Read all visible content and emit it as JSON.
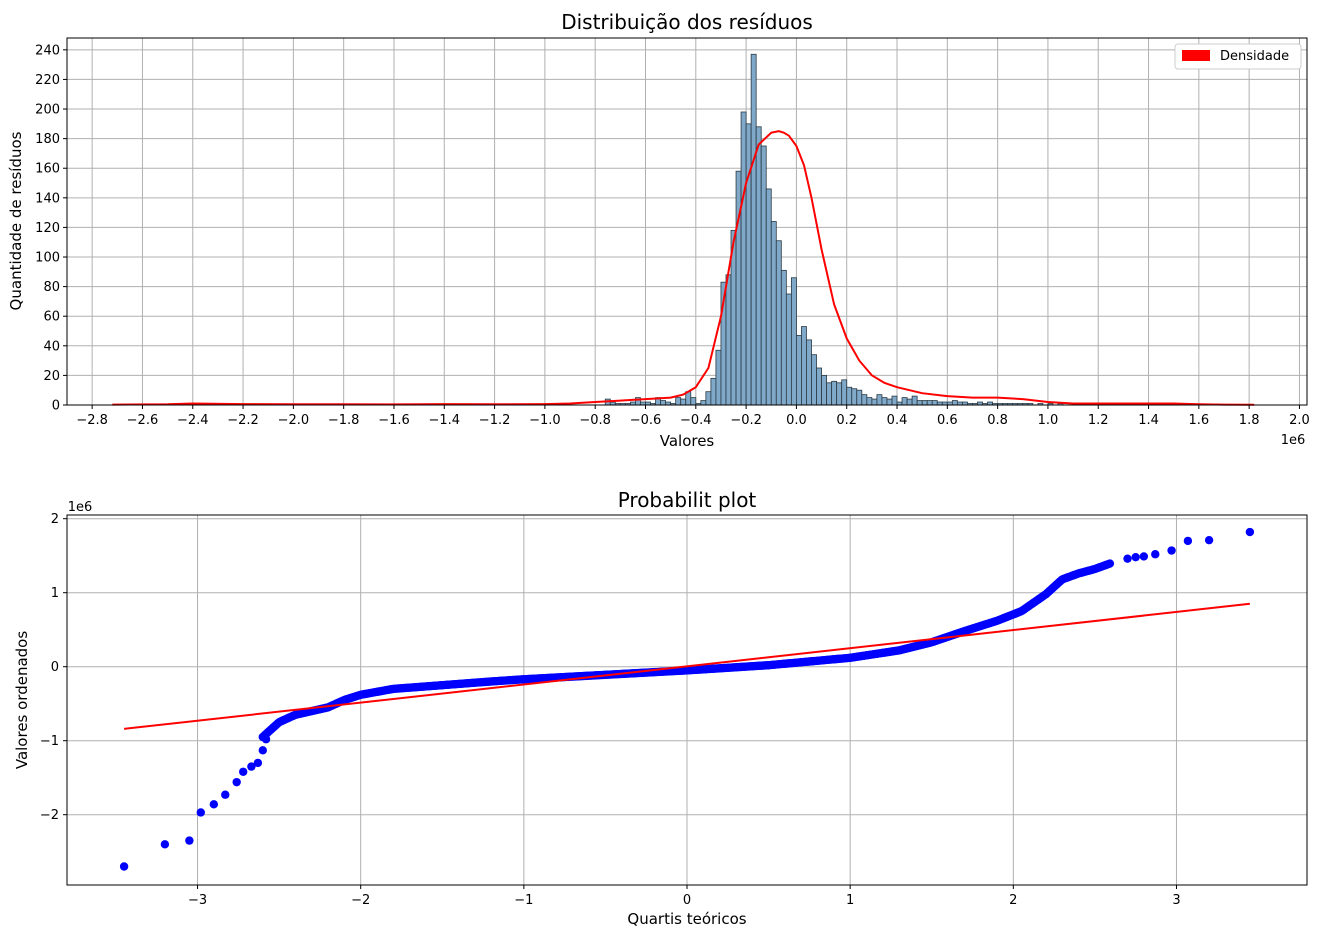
{
  "chart_data": [
    {
      "type": "bar",
      "title": "Distribuição dos resíduos",
      "xlabel": "Valores",
      "ylabel": "Quantidade de resíduos",
      "x_offset_text": "1e6",
      "xlim": [
        -2.9,
        2.03
      ],
      "ylim": [
        0,
        248
      ],
      "xticks": [
        -2.8,
        -2.6,
        -2.4,
        -2.2,
        -2.0,
        -1.8,
        -1.6,
        -1.4,
        -1.2,
        -1.0,
        -0.8,
        -0.6,
        -0.4,
        -0.2,
        0.0,
        0.2,
        0.4,
        0.6,
        0.8,
        1.0,
        1.2,
        1.4,
        1.6,
        1.8,
        2.0
      ],
      "xtick_labels": [
        "−2.8",
        "−2.6",
        "−2.4",
        "−2.2",
        "−2.0",
        "−1.8",
        "−1.6",
        "−1.4",
        "−1.2",
        "−1.0",
        "−0.8",
        "−0.6",
        "−0.4",
        "−0.2",
        "0.0",
        "0.2",
        "0.4",
        "0.6",
        "0.8",
        "1.0",
        "1.2",
        "1.4",
        "1.6",
        "1.8",
        "2.0"
      ],
      "yticks": [
        0,
        20,
        40,
        60,
        80,
        100,
        120,
        140,
        160,
        180,
        200,
        220,
        240
      ],
      "grid": true,
      "legend": {
        "position": "top-right",
        "entries": [
          "Densidade"
        ]
      },
      "bar_color": "#7fa8c9",
      "bar_edge": "#2b3a44",
      "kde_color": "#ff0000",
      "bin_width": 0.02,
      "bin_starts": [
        -0.92,
        -0.76,
        -0.74,
        -0.72,
        -0.7,
        -0.68,
        -0.66,
        -0.64,
        -0.62,
        -0.6,
        -0.58,
        -0.56,
        -0.54,
        -0.52,
        -0.5,
        -0.48,
        -0.46,
        -0.44,
        -0.42,
        -0.4,
        -0.38,
        -0.36,
        -0.34,
        -0.32,
        -0.3,
        -0.28,
        -0.26,
        -0.24,
        -0.22,
        -0.2,
        -0.18,
        -0.16,
        -0.14,
        -0.12,
        -0.1,
        -0.08,
        -0.06,
        -0.04,
        -0.02,
        0.0,
        0.02,
        0.04,
        0.06,
        0.08,
        0.1,
        0.12,
        0.14,
        0.16,
        0.18,
        0.2,
        0.22,
        0.24,
        0.26,
        0.28,
        0.3,
        0.32,
        0.34,
        0.36,
        0.38,
        0.4,
        0.42,
        0.44,
        0.46,
        0.48,
        0.5,
        0.52,
        0.54,
        0.56,
        0.58,
        0.6,
        0.62,
        0.64,
        0.66,
        0.68,
        0.7,
        0.72,
        0.74,
        0.76,
        0.78,
        0.8,
        0.82,
        0.84,
        0.86,
        0.88,
        0.9,
        0.92,
        0.96,
        1.0,
        1.04,
        1.1,
        1.16,
        1.2,
        1.26,
        1.3,
        1.36
      ],
      "counts": [
        1,
        4,
        2,
        1,
        1,
        1,
        2,
        5,
        2,
        2,
        1,
        5,
        3,
        2,
        1,
        5,
        4,
        9,
        5,
        1,
        3,
        9,
        18,
        37,
        83,
        88,
        118,
        158,
        198,
        190,
        237,
        188,
        175,
        146,
        124,
        111,
        91,
        75,
        86,
        47,
        53,
        44,
        34,
        25,
        20,
        15,
        16,
        15,
        17,
        12,
        11,
        10,
        7,
        5,
        4,
        7,
        5,
        4,
        6,
        2,
        5,
        4,
        6,
        3,
        3,
        3,
        3,
        2,
        2,
        2,
        3,
        2,
        2,
        1,
        1,
        2,
        1,
        2,
        1,
        1,
        1,
        1,
        1,
        1,
        1,
        1,
        1,
        1,
        1,
        1,
        1,
        1,
        1,
        1,
        1
      ],
      "kde_x": [
        -2.72,
        -2.5,
        -2.4,
        -2.2,
        -2.0,
        -1.8,
        -1.6,
        -1.4,
        -1.2,
        -1.0,
        -0.9,
        -0.8,
        -0.7,
        -0.6,
        -0.5,
        -0.45,
        -0.4,
        -0.35,
        -0.3,
        -0.25,
        -0.2,
        -0.15,
        -0.1,
        -0.07,
        -0.05,
        -0.03,
        0.0,
        0.03,
        0.06,
        0.1,
        0.15,
        0.2,
        0.25,
        0.3,
        0.35,
        0.4,
        0.5,
        0.6,
        0.7,
        0.8,
        0.9,
        1.0,
        1.1,
        1.2,
        1.3,
        1.4,
        1.5,
        1.6,
        1.7,
        1.82
      ],
      "kde_y": [
        0.3,
        0.5,
        1,
        0.6,
        0.5,
        0.5,
        0.4,
        0.6,
        0.5,
        0.6,
        1,
        2,
        3,
        4,
        5,
        7,
        12,
        25,
        60,
        110,
        150,
        176,
        184,
        185,
        184,
        182,
        175,
        162,
        140,
        105,
        68,
        45,
        30,
        20,
        15,
        12,
        8,
        6,
        5,
        5,
        4,
        2,
        1,
        1,
        1,
        1,
        1,
        0.5,
        0.3,
        0.2
      ]
    },
    {
      "type": "scatter",
      "title": "Probabilit plot",
      "xlabel": "Quartis teóricos",
      "ylabel": "Valores ordenados",
      "y_offset_text": "1e6",
      "xlim": [
        -3.8,
        3.8
      ],
      "ylim": [
        -2.95,
        2.05
      ],
      "xticks": [
        -3,
        -2,
        -1,
        0,
        1,
        2,
        3
      ],
      "xtick_labels": [
        "−3",
        "−2",
        "−1",
        "0",
        "1",
        "2",
        "3"
      ],
      "yticks": [
        -2,
        -1,
        0,
        1,
        2
      ],
      "ytick_labels": [
        "−2",
        "−1",
        "0",
        "1",
        "2"
      ],
      "grid": true,
      "point_color": "#0000ff",
      "line_color": "#ff0000",
      "fit_line": {
        "x": [
          -3.45,
          3.45
        ],
        "y": [
          -0.84,
          0.85
        ]
      },
      "curve_x": [
        -2.6,
        -2.5,
        -2.4,
        -2.3,
        -2.2,
        -2.1,
        -2.0,
        -1.8,
        -1.5,
        -1.2,
        -1.0,
        -0.5,
        0.0,
        0.5,
        1.0,
        1.3,
        1.5,
        1.7,
        1.9,
        2.05,
        2.2,
        2.3,
        2.4,
        2.5,
        2.6
      ],
      "curve_y": [
        -0.95,
        -0.75,
        -0.65,
        -0.6,
        -0.55,
        -0.45,
        -0.38,
        -0.3,
        -0.25,
        -0.2,
        -0.17,
        -0.11,
        -0.05,
        0.02,
        0.12,
        0.22,
        0.33,
        0.48,
        0.62,
        0.75,
        0.98,
        1.18,
        1.26,
        1.32,
        1.4
      ],
      "outliers": [
        [
          -3.45,
          -2.7
        ],
        [
          -3.2,
          -2.4
        ],
        [
          -3.05,
          -2.35
        ],
        [
          -2.98,
          -1.97
        ],
        [
          -2.9,
          -1.86
        ],
        [
          -2.83,
          -1.73
        ],
        [
          -2.76,
          -1.56
        ],
        [
          -2.72,
          -1.42
        ],
        [
          -2.67,
          -1.35
        ],
        [
          -2.63,
          -1.3
        ],
        [
          -2.6,
          -1.13
        ],
        [
          -2.58,
          -0.98
        ],
        [
          2.7,
          1.46
        ],
        [
          2.75,
          1.48
        ],
        [
          2.8,
          1.49
        ],
        [
          2.87,
          1.52
        ],
        [
          2.97,
          1.57
        ],
        [
          3.07,
          1.7
        ],
        [
          3.2,
          1.71
        ],
        [
          3.45,
          1.82
        ]
      ]
    }
  ]
}
